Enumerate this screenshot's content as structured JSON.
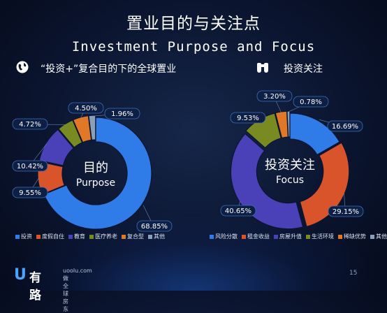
{
  "header": {
    "title_cn": "置业目的与关注点",
    "title_en": "Investment Purpose and Focus"
  },
  "left_section": {
    "title": "“投资+”复合目的下的全球置业",
    "icon": "globe-icon"
  },
  "right_section": {
    "title": "投资关注",
    "icon": "binoculars-icon"
  },
  "footer": {
    "logo_mark": "U",
    "logo_name": "有路",
    "logo_url": "uoolu.com",
    "logo_slogan": "做全球房东",
    "page_number": "15"
  },
  "chart_data": [
    {
      "type": "pie",
      "center_label": [
        "目的",
        "Purpose"
      ],
      "legend_placement": "bottom",
      "slices": [
        {
          "name": "投资",
          "value": 68.85,
          "label": "68.85%",
          "color": "#2f7be8"
        },
        {
          "name": "度假自住",
          "value": 9.55,
          "label": "9.55%",
          "color": "#d9542b"
        },
        {
          "name": "教育",
          "value": 10.42,
          "label": "10.42%",
          "color": "#4a40b8"
        },
        {
          "name": "医疗养老",
          "value": 4.72,
          "label": "4.72%",
          "color": "#7a8a22"
        },
        {
          "name": "复合型",
          "value": 4.5,
          "label": "4.50%",
          "color": "#e07828"
        },
        {
          "name": "其他",
          "value": 1.96,
          "label": "1.96%",
          "color": "#8aa0b8"
        }
      ]
    },
    {
      "type": "pie",
      "center_label": [
        "投资关注",
        "Focus"
      ],
      "legend_placement": "bottom",
      "slices": [
        {
          "name": "风险分散",
          "value": 16.69,
          "label": "16.69%",
          "color": "#2f7be8"
        },
        {
          "name": "租金收益",
          "value": 29.15,
          "label": "29.15%",
          "color": "#d9542b"
        },
        {
          "name": "房屋升值",
          "value": 40.65,
          "label": "40.65%",
          "color": "#4a40b8"
        },
        {
          "name": "生活环境",
          "value": 9.53,
          "label": "9.53%",
          "color": "#7a8a22"
        },
        {
          "name": "稀缺优势",
          "value": 3.2,
          "label": "3.20%",
          "color": "#e07828"
        },
        {
          "name": "其他",
          "value": 0.78,
          "label": "0.78%",
          "color": "#8aa0b8"
        }
      ]
    }
  ]
}
